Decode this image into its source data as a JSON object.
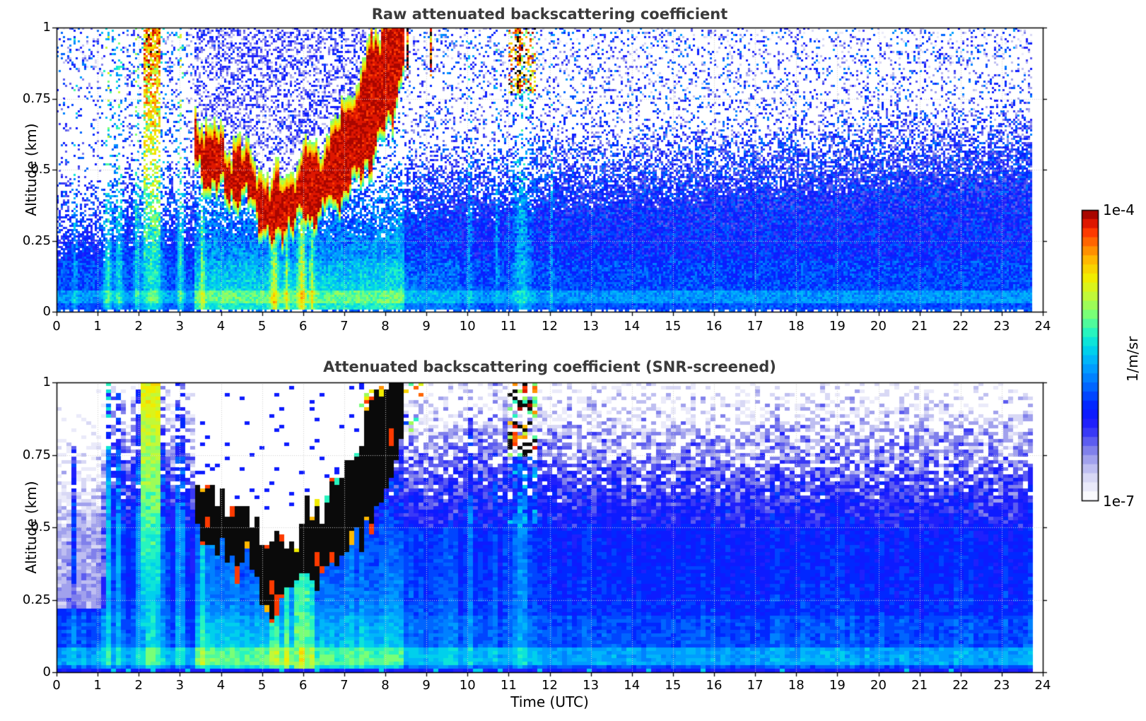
{
  "chart_data": {
    "type": "heatmap",
    "panels": [
      {
        "id": "raw",
        "title": "Raw attenuated backscattering coefficient"
      },
      {
        "id": "screened",
        "title": "Attenuated backscattering coefficient (SNR-screened)"
      }
    ],
    "x": {
      "label": "Time (UTC)",
      "min": 0,
      "max": 24,
      "data_end": 23.75,
      "ticks": [
        "0",
        "1",
        "2",
        "3",
        "4",
        "5",
        "6",
        "7",
        "8",
        "9",
        "10",
        "11",
        "12",
        "13",
        "14",
        "15",
        "16",
        "17",
        "18",
        "19",
        "20",
        "21",
        "22",
        "23",
        "24"
      ]
    },
    "y": {
      "label": "Altitude (km)",
      "min": 0,
      "max": 1,
      "ticks": [
        "0",
        "0.25",
        "0.5",
        "0.75",
        "1"
      ],
      "tick_values": [
        0,
        0.25,
        0.5,
        0.75,
        1
      ]
    },
    "colorbar": {
      "top": "1e-4",
      "bottom": "1e-7",
      "label": "1/m/sr",
      "vmin": 1e-07,
      "vmax": 0.0001,
      "scale": "log",
      "steps": 32
    },
    "colormap_stops": [
      [
        0.0,
        255,
        255,
        255
      ],
      [
        0.03,
        244,
        244,
        252
      ],
      [
        0.08,
        215,
        215,
        245
      ],
      [
        0.13,
        172,
        172,
        238
      ],
      [
        0.18,
        120,
        120,
        235
      ],
      [
        0.23,
        60,
        60,
        245
      ],
      [
        0.28,
        20,
        20,
        255
      ],
      [
        0.33,
        0,
        40,
        255
      ],
      [
        0.4,
        0,
        110,
        255
      ],
      [
        0.47,
        0,
        170,
        255
      ],
      [
        0.53,
        0,
        220,
        230
      ],
      [
        0.58,
        40,
        245,
        190
      ],
      [
        0.64,
        120,
        255,
        120
      ],
      [
        0.7,
        190,
        250,
        60
      ],
      [
        0.76,
        240,
        240,
        0
      ],
      [
        0.82,
        255,
        195,
        0
      ],
      [
        0.87,
        255,
        130,
        0
      ],
      [
        0.92,
        255,
        60,
        0
      ],
      [
        0.96,
        215,
        15,
        0
      ],
      [
        1.0,
        140,
        0,
        0
      ]
    ],
    "features": {
      "cloud_layer": {
        "time": [
          3.35,
          3.7,
          4.2,
          4.7,
          5.05,
          5.3,
          5.6,
          6.0,
          6.5,
          7.0,
          7.4,
          7.8,
          8.1,
          8.45
        ],
        "base_km": [
          0.52,
          0.46,
          0.42,
          0.4,
          0.3,
          0.24,
          0.32,
          0.33,
          0.36,
          0.42,
          0.5,
          0.58,
          0.68,
          0.85
        ],
        "top_km": [
          0.66,
          0.6,
          0.56,
          0.52,
          0.45,
          0.41,
          0.44,
          0.5,
          0.56,
          0.68,
          0.8,
          0.95,
          1.05,
          1.15
        ]
      },
      "streaks": [
        {
          "t": 0.45,
          "w": 0.06,
          "s": 0.28
        },
        {
          "t": 1.25,
          "w": 0.1,
          "s": 0.5
        },
        {
          "t": 1.52,
          "w": 0.1,
          "s": 0.45
        },
        {
          "t": 1.95,
          "w": 0.06,
          "s": 0.4
        },
        {
          "t": 2.32,
          "w": 0.26,
          "s": 0.55
        },
        {
          "t": 3.02,
          "w": 0.09,
          "s": 0.5
        },
        {
          "t": 3.55,
          "w": 0.05,
          "s": 0.4
        },
        {
          "t": 5.3,
          "w": 0.09,
          "s": 0.55
        },
        {
          "t": 5.6,
          "w": 0.05,
          "s": 0.45
        },
        {
          "t": 5.97,
          "w": 0.09,
          "s": 0.6
        },
        {
          "t": 6.22,
          "w": 0.06,
          "s": 0.45
        },
        {
          "t": 10.05,
          "w": 0.07,
          "s": 0.22
        },
        {
          "t": 10.72,
          "w": 0.05,
          "s": 0.26
        },
        {
          "t": 11.32,
          "w": 0.22,
          "s": 0.34
        },
        {
          "t": 12.05,
          "w": 0.05,
          "s": 0.22
        }
      ],
      "bright_column": {
        "t": 2.32,
        "half_width": 0.21
      },
      "ground_reach_column": {
        "t": 6.0,
        "half_width": 0.16
      },
      "top_blob": {
        "t": 11.32,
        "w": 0.32,
        "z_base": 0.77
      },
      "feature_11utc": {
        "t": 11.32,
        "half_width": 0.38,
        "z_zone": 0.74
      },
      "remnant_streak_times": [
        8.2,
        8.35,
        8.55,
        9.1
      ]
    },
    "style": {
      "title_color": "#3a3a3a",
      "grid_color": "#cfcfcf",
      "axis_color": "#000000",
      "no_data_color": "#ffffff",
      "over_range_color": "#0a0a0a"
    }
  }
}
